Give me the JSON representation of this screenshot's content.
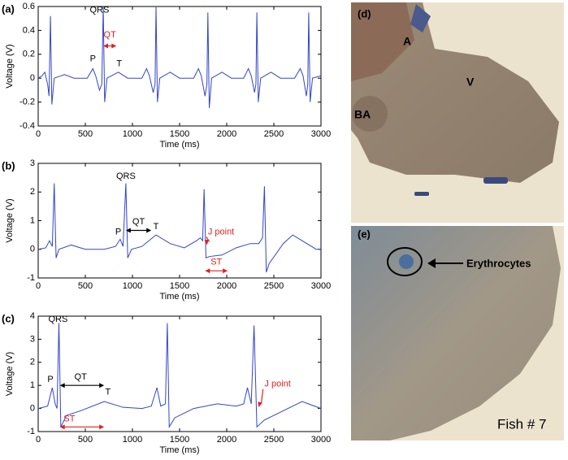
{
  "chart_data": [
    {
      "type": "line",
      "panel": "(a)",
      "xlabel": "Time (ms)",
      "ylabel": "Voltage (V)",
      "color": "#3344cc",
      "x": [
        0,
        40,
        70,
        100,
        115,
        130,
        145,
        170,
        280,
        380,
        520,
        580,
        610,
        650,
        675,
        690,
        705,
        730,
        850,
        950,
        1100,
        1150,
        1180,
        1220,
        1240,
        1250,
        1265,
        1290,
        1400,
        1500,
        1650,
        1700,
        1730,
        1770,
        1790,
        1800,
        1815,
        1840,
        1950,
        2050,
        2180,
        2230,
        2260,
        2295,
        2310,
        2320,
        2335,
        2360,
        2470,
        2570,
        2720,
        2780,
        2810,
        2845,
        2860,
        2870,
        2885,
        2910,
        3000
      ],
      "values": [
        0.0,
        0.02,
        0.05,
        -0.05,
        -0.15,
        0.52,
        -0.22,
        0.0,
        0.03,
        0.0,
        0.0,
        0.08,
        0.02,
        -0.1,
        -0.05,
        0.6,
        -0.2,
        0.0,
        0.05,
        0.0,
        0.0,
        0.08,
        0.02,
        -0.12,
        -0.05,
        0.6,
        -0.2,
        0.0,
        0.05,
        0.0,
        0.0,
        0.08,
        0.02,
        -0.15,
        -0.05,
        0.55,
        -0.25,
        0.0,
        0.05,
        0.0,
        0.0,
        0.08,
        0.02,
        -0.12,
        -0.05,
        0.55,
        -0.2,
        0.0,
        0.05,
        0.0,
        0.0,
        0.08,
        0.02,
        -0.15,
        -0.05,
        0.55,
        -0.2,
        0.0,
        0.02
      ],
      "xlim": [
        0,
        3000
      ],
      "xticks": [
        0,
        500,
        1000,
        1500,
        2000,
        2500,
        3000
      ],
      "ylim": [
        -0.4,
        0.6
      ],
      "yticks": [
        -0.4,
        -0.2,
        0,
        0.2,
        0.4,
        0.6
      ],
      "annotations": [
        {
          "text": "QRS",
          "color": "#000000"
        },
        {
          "text": "QT",
          "color": "#e02020"
        },
        {
          "text": "P",
          "color": "#000000"
        },
        {
          "text": "T",
          "color": "#000000"
        }
      ]
    },
    {
      "type": "line",
      "panel": "(b)",
      "xlabel": "Time (ms)",
      "ylabel": "Voltage (V)",
      "color": "#3344cc",
      "x": [
        0,
        80,
        120,
        150,
        170,
        190,
        220,
        350,
        500,
        700,
        820,
        870,
        900,
        930,
        950,
        990,
        1100,
        1250,
        1400,
        1550,
        1680,
        1720,
        1745,
        1760,
        1780,
        1820,
        1950,
        2100,
        2250,
        2340,
        2380,
        2400,
        2420,
        2450,
        2600,
        2700,
        2800,
        2950,
        3000
      ],
      "values": [
        0.0,
        0.05,
        0.3,
        0.1,
        2.3,
        -0.3,
        0.0,
        0.15,
        0.0,
        0.0,
        0.1,
        0.35,
        0.1,
        2.3,
        -0.3,
        0.0,
        0.1,
        0.5,
        0.2,
        0.05,
        0.3,
        0.4,
        0.3,
        2.1,
        -0.3,
        -0.25,
        -0.2,
        0.05,
        0.2,
        0.2,
        0.4,
        2.2,
        -0.8,
        -0.5,
        0.2,
        0.5,
        0.3,
        0.0,
        0.0
      ],
      "xlim": [
        0,
        3000
      ],
      "xticks": [
        0,
        500,
        1000,
        1500,
        2000,
        2500,
        3000
      ],
      "ylim": [
        -1,
        3
      ],
      "yticks": [
        -1,
        0,
        1,
        2,
        3
      ],
      "annotations": [
        {
          "text": "QRS",
          "color": "#000000"
        },
        {
          "text": "QT",
          "color": "#000000"
        },
        {
          "text": "P",
          "color": "#000000"
        },
        {
          "text": "T",
          "color": "#000000"
        },
        {
          "text": "J point",
          "color": "#e02020"
        },
        {
          "text": "ST",
          "color": "#e02020"
        }
      ]
    },
    {
      "type": "line",
      "panel": "(c)",
      "xlabel": "Time (ms)",
      "ylabel": "Voltage (V)",
      "color": "#3344cc",
      "x": [
        0,
        100,
        150,
        180,
        200,
        220,
        240,
        300,
        450,
        700,
        900,
        1100,
        1200,
        1260,
        1300,
        1350,
        1370,
        1390,
        1450,
        1650,
        1900,
        2100,
        2180,
        2220,
        2260,
        2290,
        2320,
        2400,
        2600,
        2800,
        3000
      ],
      "values": [
        0.0,
        0.1,
        0.9,
        0.2,
        0.0,
        3.7,
        -0.8,
        -0.3,
        -0.1,
        0.3,
        0.05,
        0.0,
        0.1,
        0.9,
        0.1,
        0.2,
        3.7,
        -0.8,
        -0.4,
        0.0,
        0.2,
        0.1,
        0.2,
        0.9,
        0.2,
        3.6,
        -0.8,
        -0.5,
        -0.1,
        0.3,
        0.0
      ],
      "xlim": [
        0,
        3000
      ],
      "xticks": [
        0,
        500,
        1000,
        1500,
        2000,
        2500,
        3000
      ],
      "ylim": [
        -1,
        4
      ],
      "yticks": [
        -1,
        0,
        1,
        2,
        3,
        4
      ],
      "annotations": [
        {
          "text": "QRS",
          "color": "#000000"
        },
        {
          "text": "P",
          "color": "#000000"
        },
        {
          "text": "QT",
          "color": "#000000"
        },
        {
          "text": "T",
          "color": "#000000"
        },
        {
          "text": "ST",
          "color": "#e02020"
        },
        {
          "text": "J point",
          "color": "#e02020"
        }
      ]
    }
  ],
  "images": [
    {
      "panel": "(d)",
      "labels": [
        "A",
        "V",
        "BA"
      ]
    },
    {
      "panel": "(e)",
      "labels": [
        "Erythrocytes",
        "Fish # 7"
      ]
    }
  ]
}
